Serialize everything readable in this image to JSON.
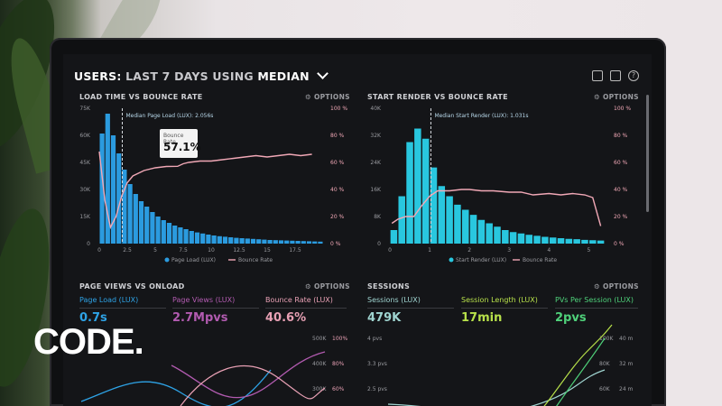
{
  "header": {
    "prefix": "USERS:",
    "mid": "LAST 7 DAYS USING",
    "suffix": "MEDIAN",
    "icons": [
      "monitor-icon",
      "image-icon",
      "help-icon"
    ]
  },
  "brand": {
    "logo_text": "CODE."
  },
  "panels": {
    "load_time": {
      "title": "LOAD TIME VS BOUNCE RATE",
      "options": "OPTIONS",
      "median_label": "Median Page Load (LUX): 2.056s",
      "tooltip_label": "Bounce Rate",
      "tooltip_value": "57.1%",
      "legend": [
        "Page Load (LUX)",
        "Bounce Rate"
      ]
    },
    "start_render": {
      "title": "START RENDER VS BOUNCE RATE",
      "options": "OPTIONS",
      "median_label": "Median Start Render (LUX): 1.031s",
      "legend": [
        "Start Render (LUX)",
        "Bounce Rate"
      ]
    },
    "page_views": {
      "title": "PAGE VIEWS VS ONLOAD",
      "options": "OPTIONS",
      "kpis": [
        {
          "label": "Page Load (LUX)",
          "value": "0.7s",
          "color": "#2ea3e6"
        },
        {
          "label": "Page Views (LUX)",
          "value": "2.7Mpvs",
          "color": "#b25bb0"
        },
        {
          "label": "Bounce Rate (LUX)",
          "value": "40.6%",
          "color": "#e8a0b4"
        }
      ],
      "right_axis_a": [
        "500K",
        "400K",
        "300K"
      ],
      "right_axis_b": [
        "100%",
        "80%",
        "60%"
      ]
    },
    "sessions": {
      "title": "SESSIONS",
      "options": "OPTIONS",
      "kpis": [
        {
          "label": "Sessions (LUX)",
          "value": "479K",
          "color": "#9fd4d0"
        },
        {
          "label": "Session Length (LUX)",
          "value": "17min",
          "color": "#b7e04a"
        },
        {
          "label": "PVs Per Session (LUX)",
          "value": "2pvs",
          "color": "#4fd17a"
        }
      ],
      "left_axis": [
        "4 pvs",
        "3.3 pvs",
        "2.5 pvs"
      ],
      "right_axis_a": [
        "100K",
        "80K",
        "60K"
      ],
      "right_axis_b": [
        "40 m",
        "32 m",
        "24 m"
      ]
    }
  },
  "chart_data": [
    {
      "type": "bar",
      "title": "LOAD TIME VS BOUNCE RATE",
      "x_ticks": [
        "0",
        "2.5",
        "5",
        "7.5",
        "10",
        "12.5",
        "15",
        "17.5"
      ],
      "y_ticks_left": [
        "75K",
        "60K",
        "45K",
        "30K",
        "15K",
        "0"
      ],
      "y_ticks_right": [
        "100 %",
        "80 %",
        "60 %",
        "40 %",
        "20 %",
        "0 %"
      ],
      "xlim": [
        0,
        20
      ],
      "ylim": [
        0,
        75000
      ],
      "y2lim": [
        0,
        100
      ],
      "series": [
        {
          "name": "Page Load (LUX)",
          "type": "bar",
          "color": "#2b9bdf",
          "x": [
            0.25,
            0.75,
            1.25,
            1.75,
            2.25,
            2.75,
            3.25,
            3.75,
            4.25,
            4.75,
            5.25,
            5.75,
            6.25,
            6.75,
            7.25,
            7.75,
            8.25,
            8.75,
            9.25,
            9.75,
            10.25,
            10.75,
            11.25,
            11.75,
            12.25,
            12.75,
            13.25,
            13.75,
            14.25,
            14.75,
            15.25,
            15.75,
            16.25,
            16.75,
            17.25,
            17.75,
            18.25,
            18.75,
            19.25,
            19.75
          ],
          "values": [
            61000,
            72000,
            60000,
            50000,
            41000,
            33000,
            27500,
            23500,
            20500,
            17500,
            15000,
            13000,
            11500,
            10000,
            9000,
            8000,
            7000,
            6200,
            5600,
            5000,
            4500,
            4100,
            3800,
            3500,
            3200,
            3000,
            2800,
            2600,
            2400,
            2200,
            2000,
            1900,
            1800,
            1700,
            1600,
            1500,
            1400,
            1300,
            1200,
            1100
          ]
        },
        {
          "name": "Bounce Rate",
          "type": "line",
          "color": "#f1a8b6",
          "x": [
            0,
            0.5,
            1,
            1.5,
            2,
            2.5,
            3,
            4,
            5,
            6,
            7,
            7.5,
            8,
            9,
            10,
            11,
            12,
            13,
            14,
            15,
            16,
            17,
            18,
            19
          ],
          "values": [
            68,
            32,
            12,
            20,
            35,
            45,
            50,
            54,
            56,
            57,
            57.1,
            59,
            60,
            61,
            61,
            62,
            63,
            64,
            65,
            64,
            65,
            66,
            65,
            66
          ]
        }
      ]
    },
    {
      "type": "bar",
      "title": "START RENDER VS BOUNCE RATE",
      "x_ticks": [
        "0",
        "1",
        "2",
        "3",
        "4",
        "5"
      ],
      "y_ticks_left": [
        "40K",
        "32K",
        "24K",
        "16K",
        "8K",
        "0"
      ],
      "y_ticks_right": [
        "100 %",
        "80 %",
        "60 %",
        "40 %",
        "20 %",
        "0 %"
      ],
      "xlim": [
        0,
        5.4
      ],
      "ylim": [
        0,
        40000
      ],
      "y2lim": [
        0,
        100
      ],
      "series": [
        {
          "name": "Start Render (LUX)",
          "type": "bar",
          "color": "#29c7df",
          "x": [
            0.1,
            0.3,
            0.5,
            0.7,
            0.9,
            1.1,
            1.3,
            1.5,
            1.7,
            1.9,
            2.1,
            2.3,
            2.5,
            2.7,
            2.9,
            3.1,
            3.3,
            3.5,
            3.7,
            3.9,
            4.1,
            4.3,
            4.5,
            4.7,
            4.9,
            5.1,
            5.3
          ],
          "values": [
            4000,
            14000,
            30000,
            34000,
            31000,
            22500,
            17000,
            14000,
            11500,
            10000,
            8500,
            7000,
            6000,
            5000,
            4000,
            3400,
            3000,
            2600,
            2300,
            2000,
            1800,
            1600,
            1400,
            1300,
            1100,
            1000,
            900
          ]
        },
        {
          "name": "Bounce Rate",
          "type": "line",
          "color": "#f1a8b6",
          "x": [
            0.05,
            0.2,
            0.4,
            0.6,
            0.8,
            1.0,
            1.2,
            1.5,
            1.8,
            2.0,
            2.3,
            2.6,
            3.0,
            3.3,
            3.6,
            4.0,
            4.3,
            4.6,
            4.9,
            5.1,
            5.3
          ],
          "values": [
            15,
            18,
            20,
            20,
            28,
            35,
            39,
            39,
            40,
            40,
            39,
            39,
            38,
            38,
            36,
            37,
            36,
            37,
            36,
            34,
            13
          ]
        }
      ]
    }
  ]
}
